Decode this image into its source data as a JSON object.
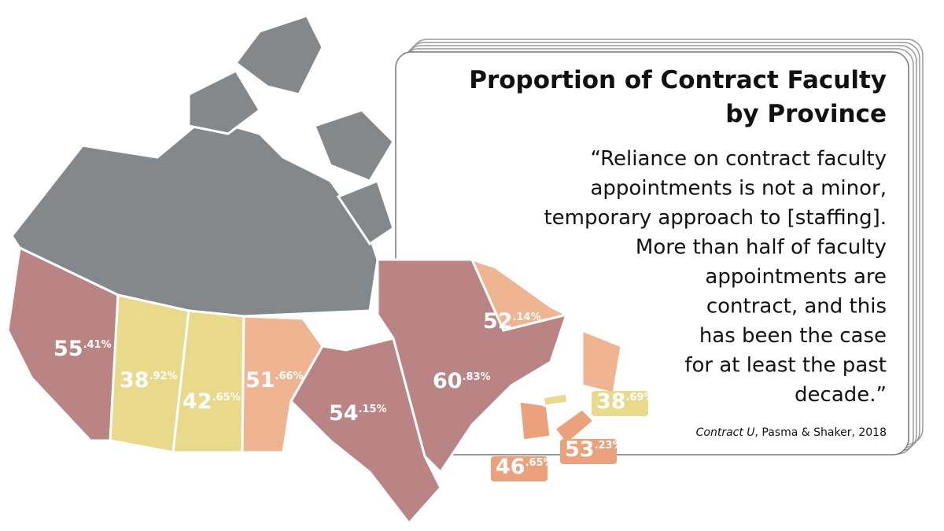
{
  "title": [
    "Proportion of Contract Faculty",
    "by Province"
  ],
  "quote": [
    "“Reliance on contract faculty",
    "appointments is not a minor,",
    "temporary approach to [staffing].",
    "More than half of faculty",
    "appointments are",
    "contract, and this",
    "has been the case",
    "for at least the past",
    "decade.”"
  ],
  "citation": {
    "work": "Contract U",
    "rest": ", Pasma & Shaker, 2018"
  },
  "provinces": [
    {
      "value": 55.41,
      "label": "55.41%",
      "color": "#b98483"
    },
    {
      "value": 38.92,
      "label": "38.92%",
      "color": "#e9d98a"
    },
    {
      "value": 42.65,
      "label": "42.65%",
      "color": "#e9d98a"
    },
    {
      "value": 51.66,
      "label": "51.66%",
      "color": "#efb491"
    },
    {
      "value": 54.15,
      "label": "54.15%",
      "color": "#b98483"
    },
    {
      "value": 60.83,
      "label": "60.83%",
      "color": "#b98483"
    },
    {
      "value": 52.14,
      "label": "52.14%",
      "color": "#efb491"
    },
    {
      "value": 46.65,
      "label": "46.65%",
      "color": "#eba27c"
    },
    {
      "value": 53.23,
      "label": "53.23%",
      "color": "#eba27c"
    },
    {
      "value": 38.69,
      "label": "38.69%",
      "color": "#e9d98a"
    }
  ]
}
